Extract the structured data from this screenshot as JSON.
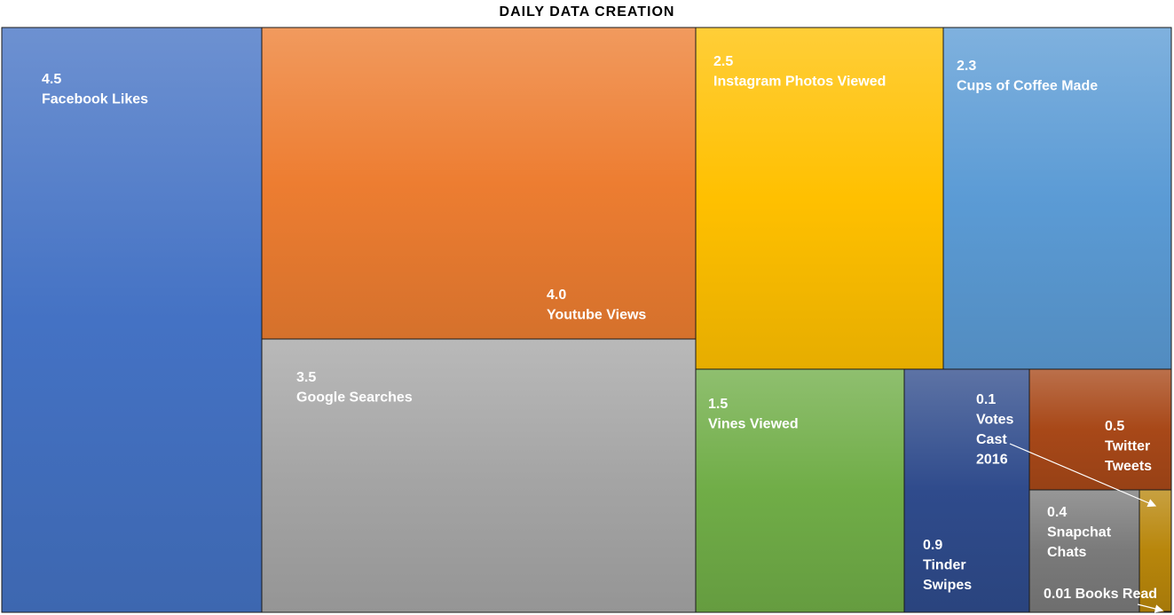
{
  "chart_data": {
    "type": "treemap",
    "title": "DAILY DATA CREATION",
    "items": [
      {
        "id": "facebook",
        "value": "4.5",
        "label": "Facebook Likes",
        "color": "#4472c4"
      },
      {
        "id": "youtube",
        "value": "4.0",
        "label": "Youtube Views",
        "color": "#ed7d31"
      },
      {
        "id": "google",
        "value": "3.5",
        "label": "Google Searches",
        "color": "#a5a5a5"
      },
      {
        "id": "instagram",
        "value": "2.5",
        "label": "Instagram Photos Viewed",
        "color": "#ffc000"
      },
      {
        "id": "coffee",
        "value": "2.3",
        "label": "Cups of Coffee Made",
        "color": "#5b9bd5"
      },
      {
        "id": "vines",
        "value": "1.5",
        "label": "Vines Viewed",
        "color": "#70ad47"
      },
      {
        "id": "tinder",
        "value": "0.9",
        "label": "Tinder Swipes",
        "color": "#2f4b8c"
      },
      {
        "id": "twitter",
        "value": "0.5",
        "label": "Twitter Tweets",
        "color": "#a84818"
      },
      {
        "id": "snapchat",
        "value": "0.4",
        "label": "Snapchat Chats",
        "color": "#7a7a7a"
      },
      {
        "id": "votes",
        "value": "0.1",
        "label": "Votes Cast 2016",
        "color": "#b8860b"
      },
      {
        "id": "books",
        "value": "0.01",
        "label": "Books Read",
        "color": "#2e66b5"
      }
    ]
  }
}
